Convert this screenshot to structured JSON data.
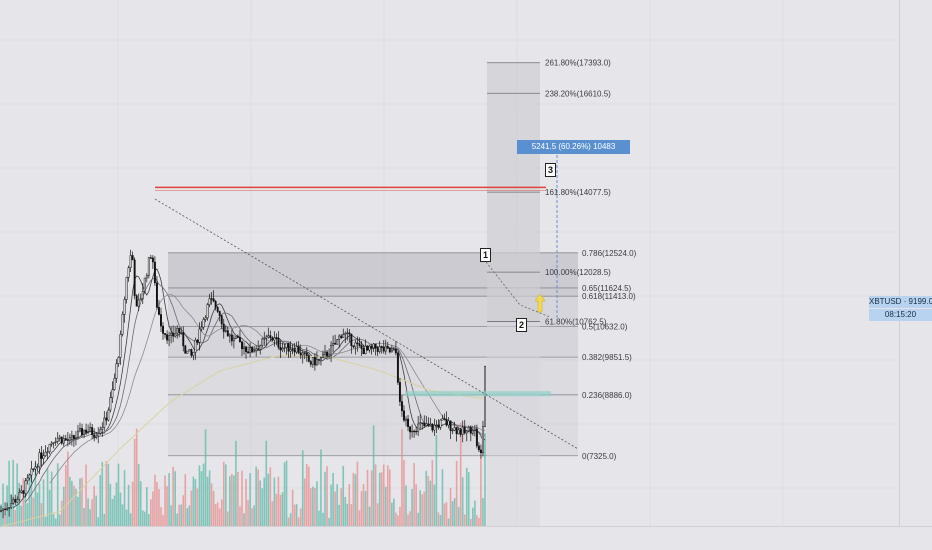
{
  "chart_data": {
    "type": "candlestick",
    "symbol": "XBTUSD",
    "last_price": 9199.0,
    "ylim": [
      5500,
      19000
    ],
    "candle_count": 240,
    "close_path": [
      [
        0,
        5900
      ],
      [
        20,
        6300
      ],
      [
        40,
        7300
      ],
      [
        55,
        7800
      ],
      [
        70,
        7700
      ],
      [
        85,
        8000
      ],
      [
        95,
        7900
      ],
      [
        105,
        8200
      ],
      [
        112,
        8900
      ],
      [
        120,
        10200
      ],
      [
        127,
        12000
      ],
      [
        132,
        12600
      ],
      [
        136,
        11000
      ],
      [
        142,
        11500
      ],
      [
        148,
        12200
      ],
      [
        152,
        12600
      ],
      [
        156,
        11300
      ],
      [
        162,
        10600
      ],
      [
        170,
        10300
      ],
      [
        178,
        10600
      ],
      [
        186,
        10000
      ],
      [
        192,
        9850
      ],
      [
        200,
        10600
      ],
      [
        210,
        11300
      ],
      [
        218,
        11100
      ],
      [
        224,
        10600
      ],
      [
        232,
        10300
      ],
      [
        240,
        10200
      ],
      [
        250,
        10000
      ],
      [
        262,
        10200
      ],
      [
        270,
        10400
      ],
      [
        282,
        10100
      ],
      [
        296,
        10100
      ],
      [
        310,
        9700
      ],
      [
        322,
        9800
      ],
      [
        336,
        10200
      ],
      [
        342,
        10500
      ],
      [
        350,
        10300
      ],
      [
        358,
        10100
      ],
      [
        368,
        10000
      ],
      [
        376,
        10100
      ],
      [
        388,
        10000
      ],
      [
        396,
        9950
      ],
      [
        400,
        8600
      ],
      [
        408,
        8000
      ],
      [
        420,
        8100
      ],
      [
        432,
        8050
      ],
      [
        444,
        8200
      ],
      [
        456,
        8000
      ],
      [
        466,
        7900
      ],
      [
        474,
        8100
      ],
      [
        478,
        7450
      ],
      [
        481,
        7350
      ],
      [
        484,
        8500
      ],
      [
        486,
        10800
      ]
    ],
    "ma_long": [
      [
        0,
        5500
      ],
      [
        60,
        5900
      ],
      [
        120,
        7500
      ],
      [
        170,
        8700
      ],
      [
        220,
        9500
      ],
      [
        280,
        9900
      ],
      [
        330,
        9850
      ],
      [
        380,
        9500
      ],
      [
        430,
        9000
      ],
      [
        480,
        8800
      ]
    ],
    "fib_levels": [
      {
        "ratio": "261.80%",
        "price": "17393.0",
        "value": 17393
      },
      {
        "ratio": "238.20%",
        "price": "16610.5",
        "value": 16610.5
      },
      {
        "ratio": "161.80%",
        "price": "14077.5",
        "value": 14077.5
      },
      {
        "ratio": "100.00%",
        "price": "12028.5",
        "value": 12028.5
      },
      {
        "ratio": "61.80%",
        "price": "10762.5",
        "value": 10762.5
      }
    ],
    "retracement_levels": [
      {
        "ratio": "0.786",
        "price": "12524.0",
        "value": 12524
      },
      {
        "ratio": "0.65",
        "price": "11624.5",
        "value": 11624.5
      },
      {
        "ratio": "0.618",
        "price": "11413.0",
        "value": 11413
      },
      {
        "ratio": "0.5",
        "price": "10632.0",
        "value": 10632
      },
      {
        "ratio": "0.382",
        "price": "9851.5",
        "value": 9851.5
      },
      {
        "ratio": "0.236",
        "price": "8886.0",
        "value": 8886
      },
      {
        "ratio": "0",
        "price": "7325.0",
        "value": 7325
      }
    ],
    "resistance_level": 14200,
    "support_zone": [
      8850,
      8980
    ],
    "wave_labels": [
      "1",
      "2",
      "3"
    ],
    "measure_label": "5241.5 (60.26%) 10483",
    "colors": {
      "background": "#e6e6ea",
      "candle_up": "#111111",
      "candle_down": "#111111",
      "volume_up": "#5fb8a8",
      "volume_down": "#e58c8c",
      "resistance": "#e0413c",
      "support_zone": "#8fd0c6",
      "ma_long": "#d9d2a0",
      "measure": "#5a8fd0",
      "projection": "#6a8fd0",
      "arrow": "#f3d94f"
    }
  },
  "tags": {
    "symbol_price": "XBTUSD · 9199.0",
    "countdown": "08:15:20"
  }
}
